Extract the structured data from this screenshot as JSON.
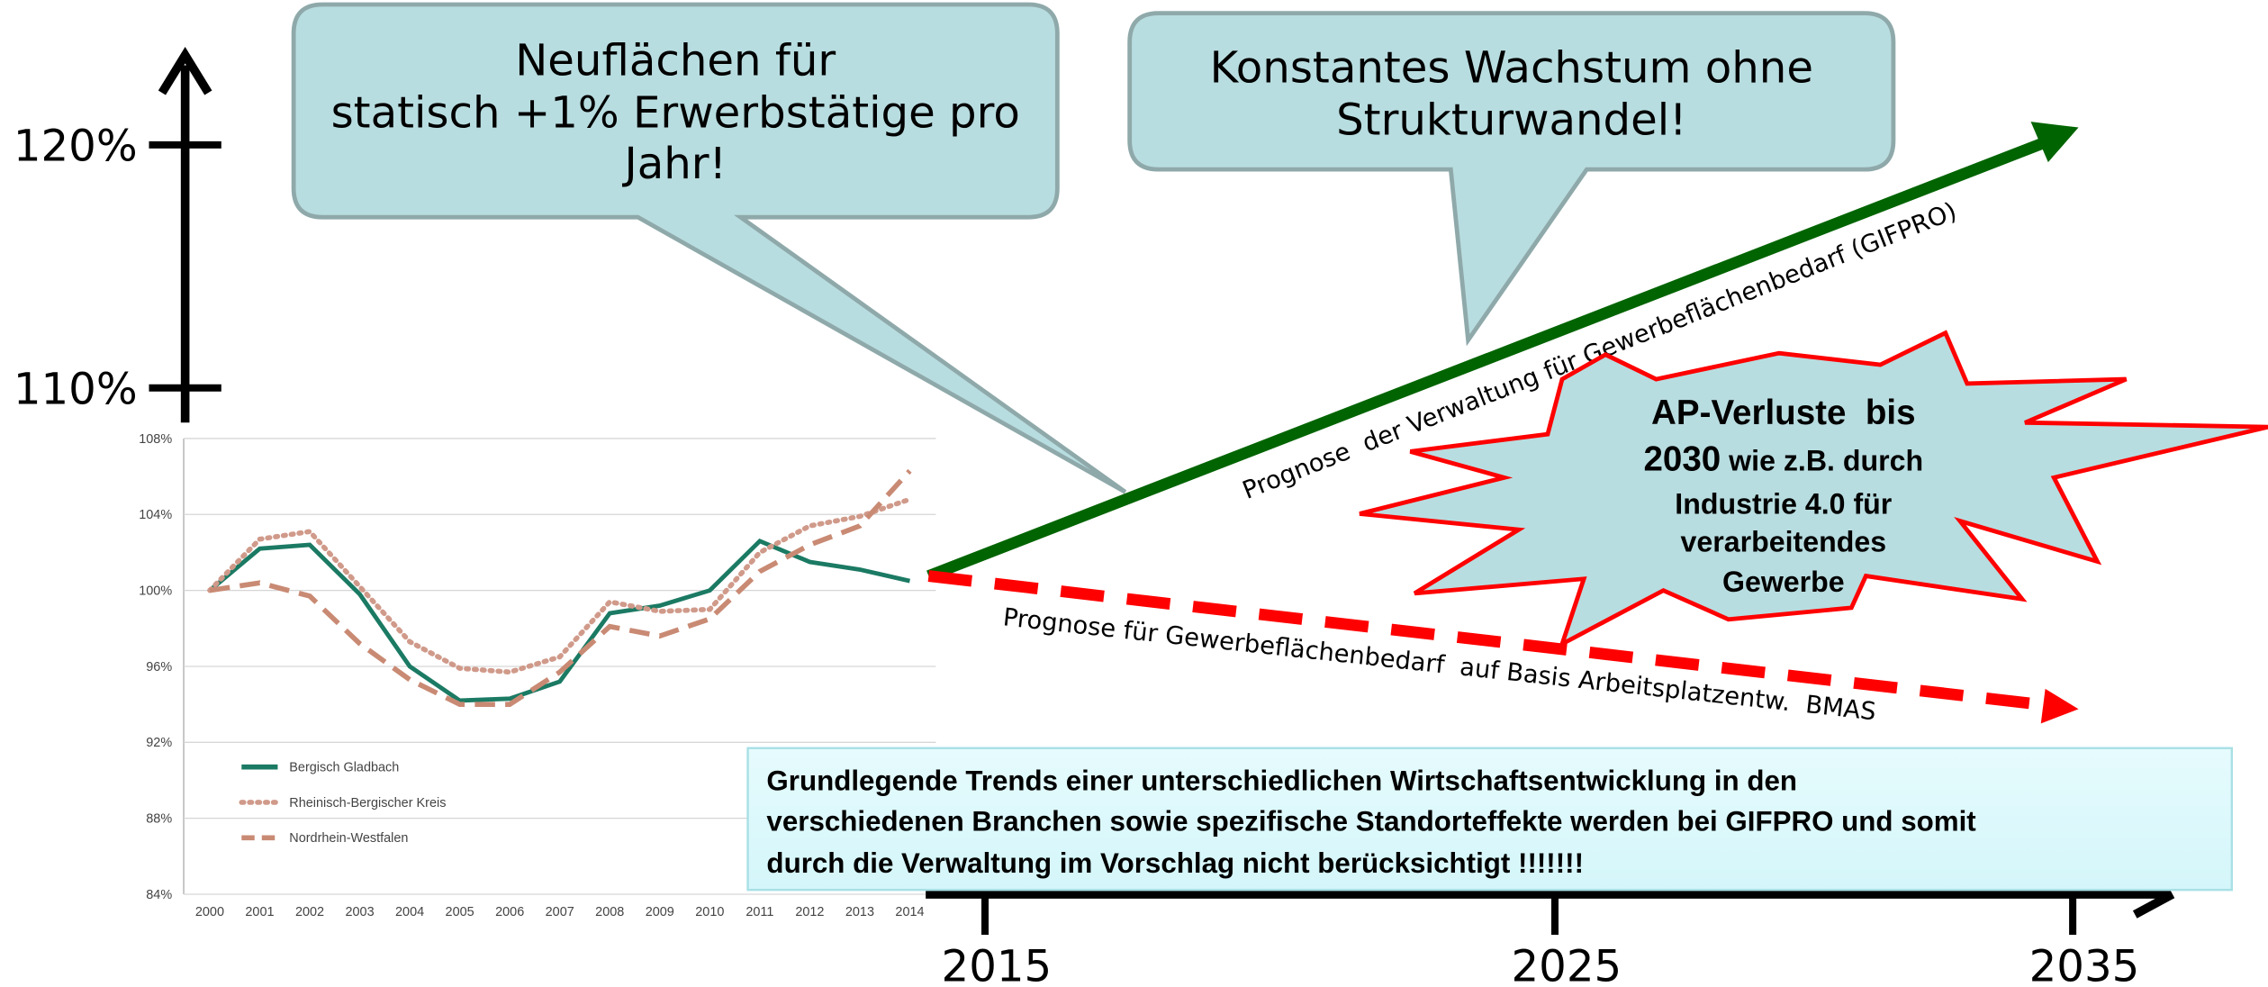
{
  "chart_data": {
    "type": "line",
    "categories": [
      "2000",
      "2001",
      "2002",
      "2003",
      "2004",
      "2005",
      "2006",
      "2007",
      "2008",
      "2009",
      "2010",
      "2011",
      "2012",
      "2013",
      "2014"
    ],
    "series": [
      {
        "name": "Bergisch Gladbach",
        "color": "#1b7a63",
        "style": "solid",
        "values": [
          100,
          102.2,
          102.4,
          99.8,
          96.0,
          94.2,
          94.3,
          95.2,
          98.8,
          99.2,
          100.0,
          102.6,
          101.5,
          101.1,
          100.5
        ]
      },
      {
        "name": "Rheinisch-Bergischer Kreis",
        "color": "#d09a8a",
        "style": "dotted",
        "values": [
          100,
          102.7,
          103.1,
          100.2,
          97.3,
          95.9,
          95.7,
          96.5,
          99.4,
          98.9,
          99.0,
          102.0,
          103.4,
          103.9,
          104.8
        ]
      },
      {
        "name": "Nordrhein-Westfalen",
        "color": "#c98a74",
        "style": "dashed",
        "values": [
          100,
          100.4,
          99.7,
          97.2,
          95.3,
          94.0,
          94.0,
          95.7,
          98.1,
          97.6,
          98.5,
          101.0,
          102.4,
          103.4,
          106.3
        ]
      }
    ],
    "ylim": [
      84,
      108
    ],
    "yticks": [
      {
        "value": 84,
        "label": "84%"
      },
      {
        "value": 88,
        "label": "88%"
      },
      {
        "value": 92,
        "label": "92%"
      },
      {
        "value": 96,
        "label": "96%"
      },
      {
        "value": 100,
        "label": "100%"
      },
      {
        "value": 104,
        "label": "104%"
      },
      {
        "value": 108,
        "label": "108%"
      }
    ],
    "grid": true
  },
  "slide": {
    "big_axis": {
      "yticks": [
        {
          "value": 110,
          "label": "110%"
        },
        {
          "value": 120,
          "label": "120%"
        }
      ],
      "xticks": [
        2015,
        2025,
        2035
      ]
    },
    "callout_left": [
      "Neuflächen für",
      "statisch +1% Erwerbstätige pro",
      "Jahr!"
    ],
    "callout_right": [
      "Konstantes Wachstum ohne",
      "Strukturwandel!"
    ],
    "forecast_gifpro": "Prognose  der Verwaltung für Gewerbeflächenbedarf (GIFPRO)",
    "forecast_bmas": "Prognose für Gewerbeflächenbedarf  auf Basis Arbeitsplatzentw.  BMAS",
    "star": {
      "line1": "AP-Verluste  bis",
      "line2a": "2030",
      "line2b": " wie z.B. durch",
      "line3": "Industrie 4.0 für",
      "line4": "verarbeitendes",
      "line5": "Gewerbe"
    },
    "note": [
      "Grundlegende Trends einer unterschiedlichen Wirtschaftsentwicklung in den",
      "verschiedenen Branchen sowie spezifische Standorteffekte werden bei GIFPRO und somit",
      "durch die Verwaltung im Vorschlag nicht berücksichtigt !!!!!!!"
    ]
  }
}
